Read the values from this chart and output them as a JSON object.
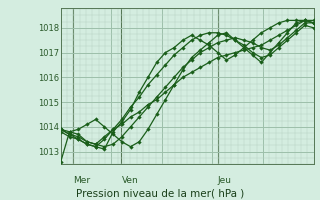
{
  "xlabel": "Pression niveau de la mer( hPa )",
  "background_color": "#d4ede0",
  "grid_color_major": "#9dbfaa",
  "grid_color_minor": "#b8d4c4",
  "line_color": "#1a5e1a",
  "ylim": [
    1012.5,
    1018.8
  ],
  "yticks": [
    1013,
    1014,
    1015,
    1016,
    1017,
    1018
  ],
  "day_labels": [
    "Mer",
    "Ven",
    "Jeu"
  ],
  "day_positions": [
    0.05,
    0.24,
    0.62
  ],
  "series": [
    [
      1012.6,
      1013.8,
      1013.7,
      1013.4,
      1013.3,
      1013.6,
      1013.9,
      1014.1,
      1014.4,
      1014.6,
      1014.9,
      1015.1,
      1015.4,
      1015.7,
      1016.0,
      1016.2,
      1016.4,
      1016.6,
      1016.8,
      1016.9,
      1017.0,
      1017.1,
      1017.2,
      1017.3,
      1017.5,
      1017.7,
      1017.9,
      1018.1,
      1018.3,
      1018.3
    ],
    [
      1013.8,
      1013.6,
      1013.5,
      1013.3,
      1013.2,
      1013.1,
      1013.8,
      1014.2,
      1014.7,
      1015.4,
      1016.0,
      1016.6,
      1017.0,
      1017.2,
      1017.5,
      1017.7,
      1017.5,
      1017.3,
      1017.0,
      1016.7,
      1016.9,
      1017.2,
      1017.5,
      1017.8,
      1018.0,
      1018.2,
      1018.3,
      1018.3,
      1018.3,
      1018.2
    ],
    [
      1013.9,
      1013.7,
      1013.6,
      1013.4,
      1013.3,
      1013.2,
      1013.3,
      1013.6,
      1014.0,
      1014.4,
      1014.8,
      1015.2,
      1015.6,
      1016.0,
      1016.4,
      1016.7,
      1017.0,
      1017.2,
      1017.4,
      1017.5,
      1017.6,
      1017.5,
      1017.4,
      1017.2,
      1017.1,
      1017.3,
      1017.6,
      1017.9,
      1018.2,
      1018.2
    ],
    [
      1013.9,
      1013.8,
      1013.9,
      1014.1,
      1014.3,
      1014.0,
      1013.7,
      1013.4,
      1013.2,
      1013.4,
      1013.9,
      1014.5,
      1015.1,
      1015.7,
      1016.3,
      1016.8,
      1017.1,
      1017.4,
      1017.7,
      1017.8,
      1017.5,
      1017.2,
      1016.9,
      1016.6,
      1017.0,
      1017.4,
      1017.8,
      1018.2,
      1018.3,
      1018.2
    ],
    [
      1013.9,
      1013.7,
      1013.5,
      1013.3,
      1013.2,
      1013.5,
      1013.9,
      1014.3,
      1014.8,
      1015.2,
      1015.7,
      1016.1,
      1016.5,
      1016.9,
      1017.2,
      1017.5,
      1017.7,
      1017.8,
      1017.8,
      1017.7,
      1017.5,
      1017.3,
      1017.0,
      1016.8,
      1016.9,
      1017.2,
      1017.5,
      1017.8,
      1018.1,
      1018.0
    ]
  ]
}
